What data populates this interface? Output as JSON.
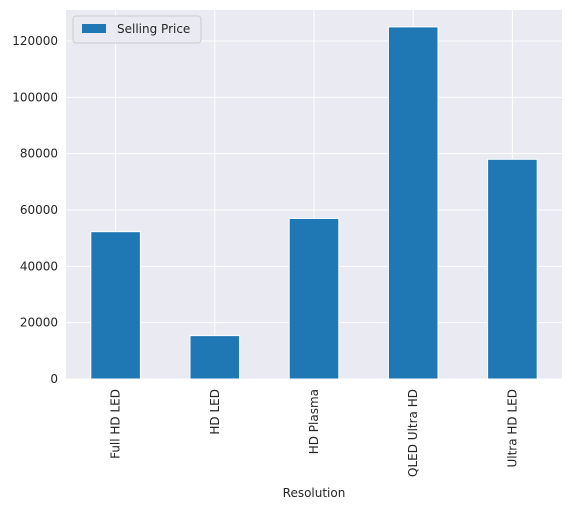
{
  "chart_data": {
    "type": "bar",
    "title": "",
    "xlabel": "Resolution",
    "ylabel": "",
    "categories": [
      "Full HD LED",
      "HD LED",
      "HD Plasma",
      "QLED Ultra HD",
      "Ultra HD LED"
    ],
    "series": [
      {
        "name": "Selling Price",
        "values": [
          52300,
          15400,
          57000,
          125000,
          78000
        ]
      }
    ],
    "ylim": [
      0,
      131000
    ],
    "yticks": [
      0,
      20000,
      40000,
      60000,
      80000,
      100000,
      120000
    ],
    "ytick_labels": [
      "0",
      "20000",
      "40000",
      "60000",
      "80000",
      "100000",
      "120000"
    ],
    "grid": true,
    "legend_position": "top-left",
    "colors": {
      "bar": "#1f77b4",
      "plot_background": "#eaeaf2",
      "grid": "#ffffff"
    }
  }
}
